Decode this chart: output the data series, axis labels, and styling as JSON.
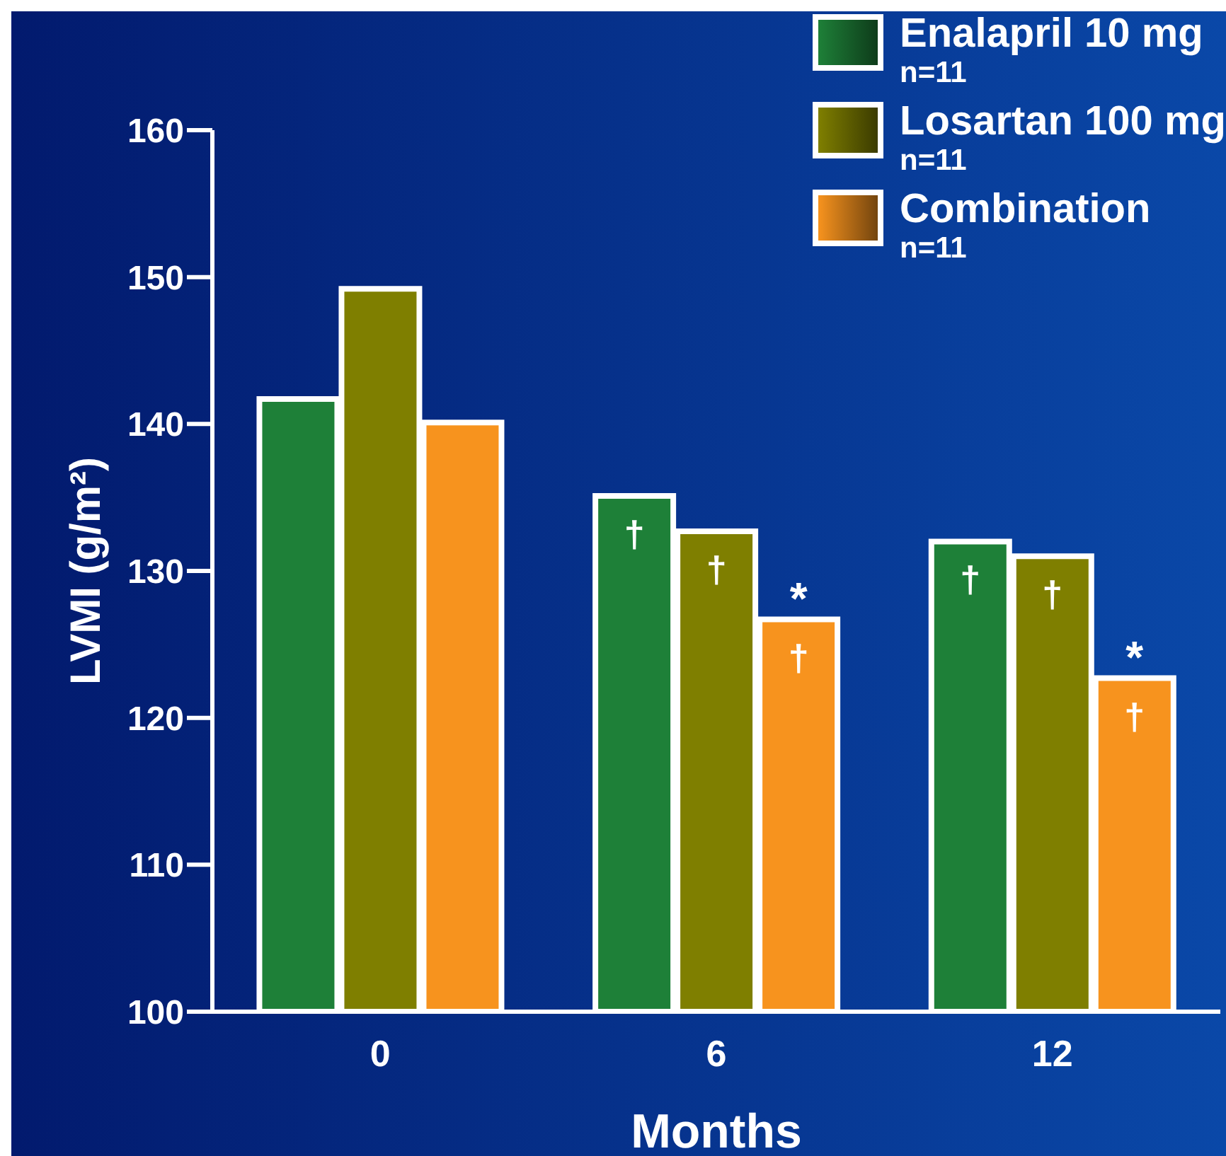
{
  "chart_data": {
    "type": "bar",
    "xlabel": "Months",
    "ylabel": "LVMI (g/m²)",
    "categories": [
      "0",
      "6",
      "12"
    ],
    "ylim": [
      100,
      160
    ],
    "yticks": [
      100,
      110,
      120,
      130,
      140,
      150,
      160
    ],
    "grid": false,
    "legend": "top right",
    "series": [
      {
        "name": "Enalapril 10 mg\nn=11",
        "color": "#1e8038",
        "values": [
          141.7,
          135.1,
          132.0
        ],
        "value_labels": [
          null,
          "†",
          "†"
        ]
      },
      {
        "name": "Losartan 100 mg\nn=11",
        "color": "#7f7f00",
        "values": [
          149.2,
          132.7,
          131.0
        ],
        "value_labels": [
          null,
          "†",
          "†"
        ]
      },
      {
        "name": "Combination\nn=11",
        "color": "#f7931e",
        "values": [
          140.1,
          126.7,
          122.7
        ],
        "value_labels": [
          null,
          "*\n†",
          "*\n†"
        ]
      }
    ]
  }
}
